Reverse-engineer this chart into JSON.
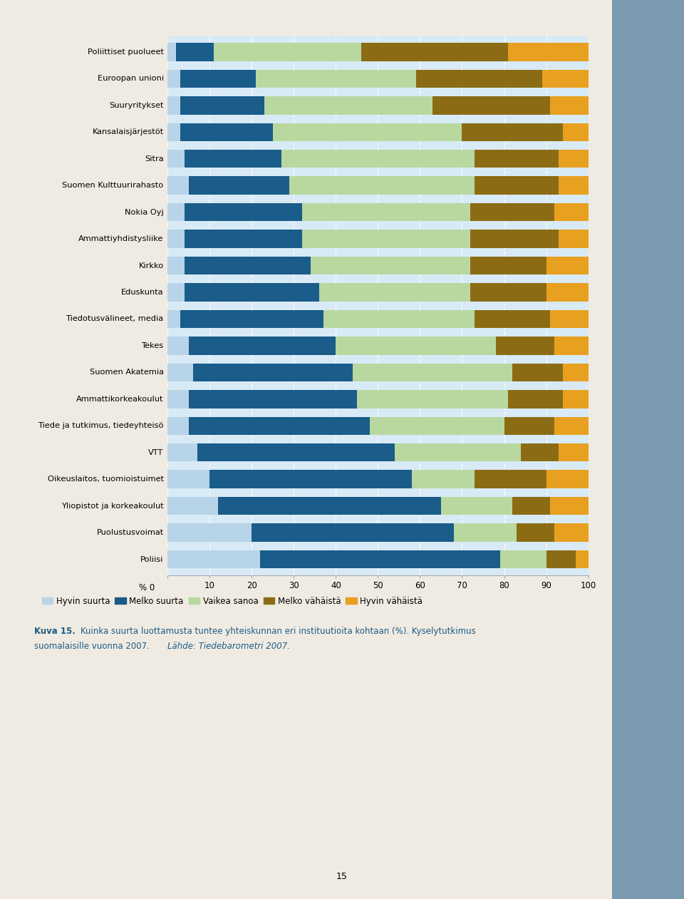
{
  "categories": [
    "Poliittiset puolueet",
    "Euroopan unioni",
    "Suuryritykset",
    "Kansalaisjärjestöt",
    "Sitra",
    "Suomen Kulttuurirahasto",
    "Nokia Oyj",
    "Ammattiyhdistysliike",
    "Kirkko",
    "Eduskunta",
    "Tiedotusvälineet, media",
    "Tekes",
    "Suomen Akatemia",
    "Ammattikorkeakoulut",
    "Tiede ja tutkimus, tiedeyhteisö",
    "VTT",
    "Oikeuslaitos, tuomioistuimet",
    "Yliopistot ja korkeakoulut",
    "Puolustusvoimat",
    "Poliisi"
  ],
  "series": {
    "Hyvin suurta": [
      2,
      3,
      3,
      3,
      4,
      5,
      4,
      4,
      4,
      4,
      3,
      5,
      6,
      5,
      5,
      7,
      10,
      12,
      20,
      22
    ],
    "Melko suurta": [
      9,
      18,
      20,
      22,
      23,
      24,
      28,
      28,
      30,
      32,
      34,
      35,
      38,
      40,
      43,
      47,
      48,
      53,
      48,
      57
    ],
    "Vaikea sanoa": [
      35,
      38,
      40,
      45,
      46,
      44,
      40,
      40,
      38,
      36,
      36,
      38,
      38,
      36,
      32,
      30,
      15,
      17,
      15,
      11
    ],
    "Melko vähäistä": [
      35,
      30,
      28,
      24,
      20,
      20,
      20,
      21,
      18,
      18,
      18,
      14,
      12,
      13,
      12,
      9,
      17,
      9,
      9,
      7
    ],
    "Hyvin vähäistä": [
      19,
      11,
      9,
      6,
      7,
      7,
      8,
      7,
      10,
      10,
      9,
      8,
      6,
      6,
      8,
      7,
      10,
      9,
      8,
      3
    ]
  },
  "colors": {
    "Hyvin suurta": "#b8d4e8",
    "Melko suurta": "#1a5c8a",
    "Vaikea sanoa": "#b8d8a0",
    "Melko vähäistä": "#8b6c14",
    "Hyvin vähäistä": "#e8a020"
  },
  "legend_order": [
    "Hyvin suurta",
    "Melko suurta",
    "Vaikea sanoa",
    "Melko vähäistä",
    "Hyvin vähäistä"
  ],
  "xtick_labels": [
    "0",
    "10",
    "20",
    "30",
    "40",
    "50",
    "60",
    "70",
    "80",
    "90",
    "100"
  ],
  "xticks": [
    0,
    10,
    20,
    30,
    40,
    50,
    60,
    70,
    80,
    90,
    100
  ],
  "xlim": [
    0,
    100
  ],
  "chart_bg": "#d8eaf5",
  "fig_bg": "#f0ebe2",
  "right_bar_color": "#7a9ab0",
  "caption_color": "#1a5c8a",
  "bar_height": 0.68,
  "ytick_fontsize": 8.2,
  "xtick_fontsize": 8.5
}
